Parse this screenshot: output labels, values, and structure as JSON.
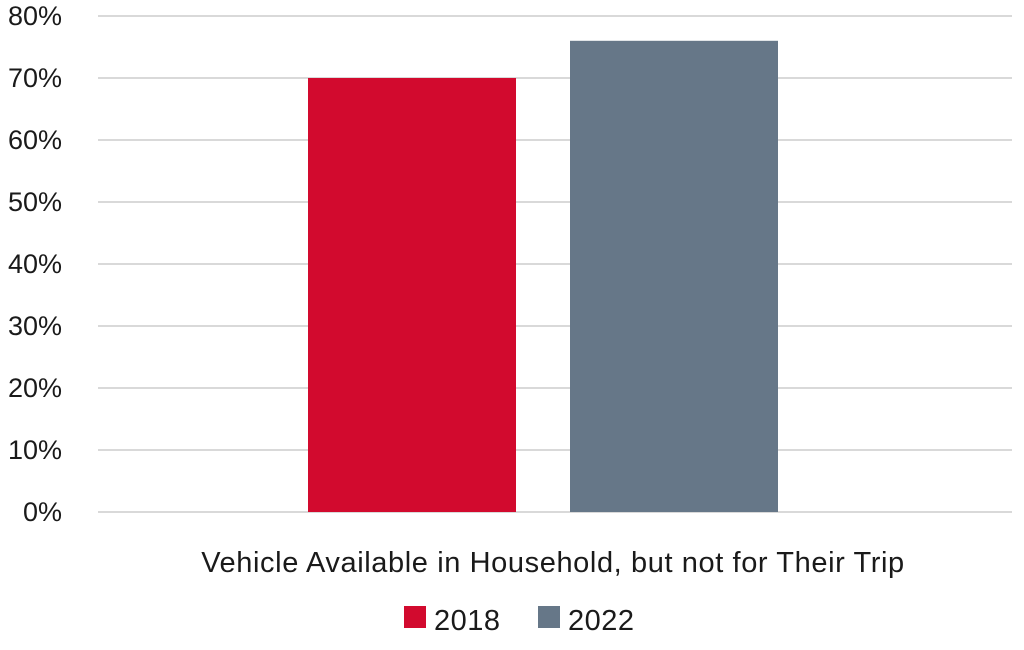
{
  "chart_data": {
    "type": "bar",
    "categories": [
      "Vehicle Available in Household, but not for Their Trip"
    ],
    "series": [
      {
        "name": "2018",
        "values": [
          70
        ],
        "color": "#d20a2e"
      },
      {
        "name": "2022",
        "values": [
          76
        ],
        "color": "#667788"
      }
    ],
    "ylim": [
      0,
      80
    ],
    "ytick_step": 10,
    "ytick_suffix": "%",
    "grid": true,
    "legend_position": "bottom-center"
  }
}
